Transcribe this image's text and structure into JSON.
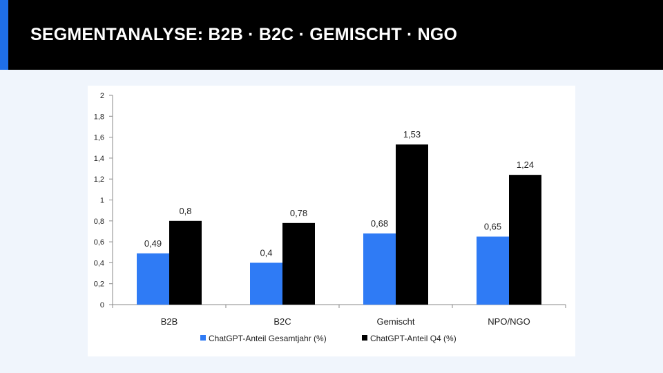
{
  "slide": {
    "title": "SEGMENTANALYSE: B2B · B2C · GEMISCHT · NGO"
  },
  "colors": {
    "accent": "#1f6fe8",
    "series1": "#2f7bf5",
    "series2": "#000000"
  },
  "chart_data": {
    "type": "bar",
    "title": "",
    "xlabel": "",
    "ylabel": "",
    "categories": [
      "B2B",
      "B2C",
      "Gemischt",
      "NPO/NGO"
    ],
    "series": [
      {
        "name": "ChatGPT-Anteil Gesamtjahr (%)",
        "values": [
          0.49,
          0.4,
          0.68,
          0.65
        ],
        "labels": [
          "0,49",
          "0,4",
          "0,68",
          "0,65"
        ]
      },
      {
        "name": "ChatGPT-Anteil Q4 (%)",
        "values": [
          0.8,
          0.78,
          1.53,
          1.24
        ],
        "labels": [
          "0,8",
          "0,78",
          "1,53",
          "1,24"
        ]
      }
    ],
    "ylim": [
      0,
      2
    ],
    "yticks": [
      0,
      0.2,
      0.4,
      0.6,
      0.8,
      1,
      1.2,
      1.4,
      1.6,
      1.8,
      2
    ],
    "ytick_labels": [
      "0",
      "0,2",
      "0,4",
      "0,6",
      "0,8",
      "1",
      "1,2",
      "1,4",
      "1,6",
      "1,8",
      "2"
    ],
    "grid": false,
    "legend": "bottom-center"
  }
}
